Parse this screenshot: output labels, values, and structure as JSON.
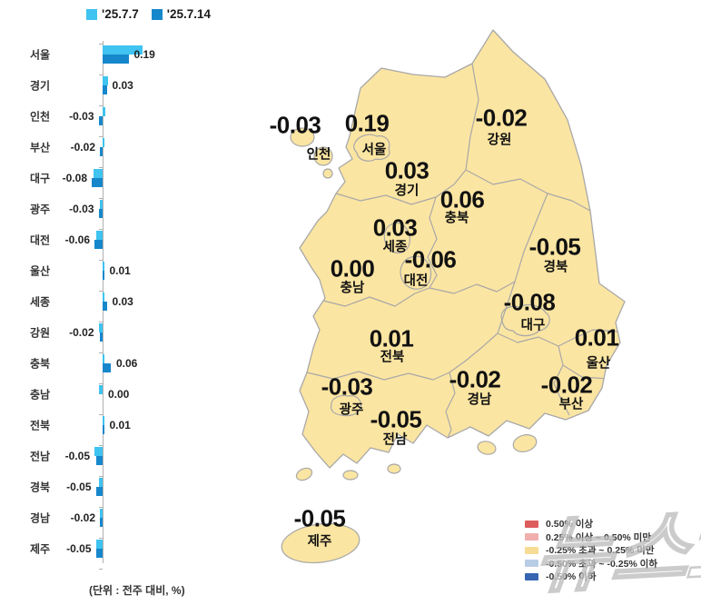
{
  "header_legend": {
    "series1_label": "'25.7.7",
    "series2_label": "'25.7.14"
  },
  "footnote": "(단위 : 전주 대비, %)",
  "watermark_text": "뉴스1",
  "colors": {
    "series1": "#3FC3F0",
    "series2": "#1787CC",
    "map_fill": "#FBE5A2",
    "map_border": "#A8A8A8"
  },
  "chart_data": {
    "type": "bar",
    "orientation": "horizontal",
    "title": "",
    "xlabel": "전주 대비 (%)",
    "ylabel": "",
    "xlim": [
      -0.12,
      0.35
    ],
    "grid": false,
    "legend_position": "top",
    "categories": [
      "서울",
      "경기",
      "인천",
      "부산",
      "대구",
      "광주",
      "대전",
      "울산",
      "세종",
      "강원",
      "충북",
      "충남",
      "전북",
      "전남",
      "경북",
      "경남",
      "제주"
    ],
    "series": [
      {
        "name": "'25.7.7",
        "color": "#3FC3F0",
        "values": [
          0.29,
          0.04,
          0.02,
          0.01,
          -0.07,
          -0.02,
          -0.05,
          0.01,
          0.01,
          -0.03,
          0.01,
          -0.03,
          0.01,
          -0.06,
          -0.03,
          -0.02,
          -0.05
        ]
      },
      {
        "name": "'25.7.14",
        "color": "#1787CC",
        "values": [
          0.19,
          0.03,
          -0.03,
          -0.02,
          -0.08,
          -0.03,
          -0.06,
          0.01,
          0.03,
          -0.02,
          0.06,
          0,
          0.01,
          -0.05,
          -0.05,
          -0.02,
          -0.05
        ]
      }
    ],
    "value_labels": [
      "0.19",
      "0.03",
      "-0.03",
      "-0.02",
      "-0.08",
      "-0.03",
      "-0.06",
      "0.01",
      "0.03",
      "-0.02",
      "0.06",
      "0.00",
      "0.01",
      "-0.05",
      "-0.05",
      "-0.02",
      "-0.05"
    ]
  },
  "map": {
    "regions": [
      {
        "key": "incheon",
        "name": "인천",
        "value": "-0.03"
      },
      {
        "key": "seoul",
        "name": "서울",
        "value": "0.19"
      },
      {
        "key": "gyeonggi",
        "name": "경기",
        "value": "0.03"
      },
      {
        "key": "gangwon",
        "name": "강원",
        "value": "-0.02"
      },
      {
        "key": "chungbuk",
        "name": "충북",
        "value": "0.06"
      },
      {
        "key": "sejong",
        "name": "세종",
        "value": "0.03"
      },
      {
        "key": "daejeon",
        "name": "대전",
        "value": "-0.06"
      },
      {
        "key": "chungnam",
        "name": "충남",
        "value": "0.00"
      },
      {
        "key": "gyeongbuk",
        "name": "경북",
        "value": "-0.05"
      },
      {
        "key": "daegu",
        "name": "대구",
        "value": "-0.08"
      },
      {
        "key": "ulsan",
        "name": "울산",
        "value": "0.01"
      },
      {
        "key": "jeonbuk",
        "name": "전북",
        "value": "0.01"
      },
      {
        "key": "gyeongnam",
        "name": "경남",
        "value": "-0.02"
      },
      {
        "key": "busan",
        "name": "부산",
        "value": "-0.02"
      },
      {
        "key": "gwangju",
        "name": "광주",
        "value": "-0.03"
      },
      {
        "key": "jeonnam",
        "name": "전남",
        "value": "-0.05"
      },
      {
        "key": "jeju",
        "name": "제주",
        "value": "-0.05"
      }
    ],
    "legend": [
      {
        "color": "#DD5C5C",
        "label": "0.50% 이상"
      },
      {
        "color": "#F1AEAE",
        "label": "0.25% 이상 ~ 0.50% 미만"
      },
      {
        "color": "#F6DC95",
        "label": "-0.25% 초과 ~ 0.25% 미만"
      },
      {
        "color": "#B9CCE6",
        "label": "-0.50% 초과 ~ -0.25% 이하"
      },
      {
        "color": "#3565B0",
        "label": "-0.50% 이하"
      }
    ]
  }
}
